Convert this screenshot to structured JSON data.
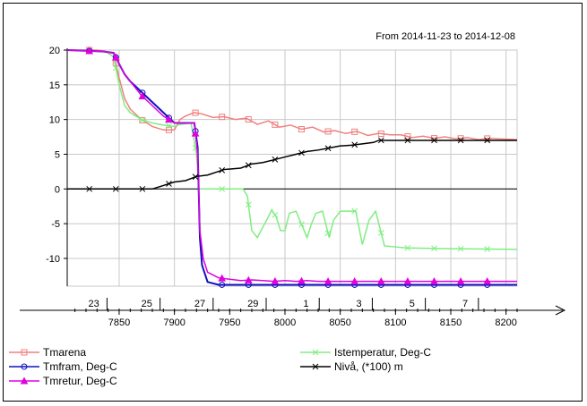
{
  "chart_data": {
    "type": "line",
    "annotation": "From 2014-11-23 to 2014-12-08",
    "x_ticks": [
      7850,
      7900,
      7950,
      8000,
      8050,
      8100,
      8150,
      8200
    ],
    "y_ticks": [
      20,
      15,
      10,
      5,
      0,
      -5,
      -10
    ],
    "date_ticks": [
      {
        "label": "23",
        "x": 7827
      },
      {
        "label": "25",
        "x": 7875
      },
      {
        "label": "27",
        "x": 7923
      },
      {
        "label": "29",
        "x": 7971
      },
      {
        "label": "1",
        "x": 8019
      },
      {
        "label": "3",
        "x": 8067
      },
      {
        "label": "5",
        "x": 8115
      },
      {
        "label": "7",
        "x": 8163
      }
    ],
    "xlim": [
      7803,
      8210
    ],
    "ylim": [
      -14,
      20
    ],
    "series": [
      {
        "name": "Tmarena",
        "color": "#f08080",
        "marker": "square",
        "x": [
          7803,
          7830,
          7838,
          7845,
          7850,
          7855,
          7860,
          7870,
          7880,
          7890,
          7900,
          7905,
          7910,
          7918,
          7925,
          7935,
          7945,
          7955,
          7965,
          7975,
          7985,
          7995,
          8005,
          8015,
          8025,
          8035,
          8045,
          8055,
          8065,
          8075,
          8085,
          8095,
          8105,
          8115,
          8125,
          8135,
          8145,
          8155,
          8165,
          8175,
          8185,
          8195,
          8210
        ],
        "y": [
          20,
          20,
          19.8,
          19.5,
          16,
          13,
          11.5,
          10,
          9,
          8.5,
          8.5,
          10,
          10.5,
          11,
          10.8,
          10.3,
          10.4,
          10,
          10.2,
          9.3,
          9.8,
          8.9,
          9.2,
          8.6,
          8.9,
          8.2,
          8.4,
          8,
          8.3,
          7.7,
          8,
          7.8,
          7.8,
          7.4,
          7.6,
          7.3,
          7.5,
          7.2,
          7.4,
          7.1,
          7.3,
          7.2,
          7.1
        ]
      },
      {
        "name": "Istemperatur, Deg-C",
        "color": "#80ee80",
        "marker": "x",
        "x": [
          7803,
          7838,
          7845,
          7850,
          7855,
          7860,
          7870,
          7880,
          7890,
          7900,
          7905,
          7915,
          7920,
          7922,
          7925,
          7928,
          7935,
          7950,
          7962,
          7966,
          7970,
          7975,
          7985,
          7988,
          7992,
          7996,
          8000,
          8004,
          8010,
          8020,
          8024,
          8028,
          8034,
          8040,
          8044,
          8050,
          8064,
          8070,
          8076,
          8082,
          8090,
          8110,
          8150,
          8210
        ],
        "y": [
          20,
          19.8,
          19,
          15,
          12,
          11,
          10,
          9.5,
          9.2,
          9,
          9.3,
          9.5,
          5,
          0,
          0,
          0,
          0,
          0,
          0,
          -1,
          -6,
          -7,
          -4,
          -3,
          -4,
          -6,
          -6,
          -3.5,
          -3.2,
          -7,
          -5,
          -3.5,
          -3.2,
          -7,
          -4.5,
          -3.2,
          -3.2,
          -8,
          -4.5,
          -3.2,
          -8.2,
          -8.5,
          -8.6,
          -8.7
        ]
      },
      {
        "name": "Tmfram, Deg-C",
        "color": "#1010c0",
        "marker": "circle",
        "x": [
          7803,
          7835,
          7845,
          7850,
          7855,
          7860,
          7870,
          7880,
          7890,
          7900,
          7910,
          7918,
          7921,
          7923,
          7925,
          7930,
          7940,
          7950,
          7980,
          8020,
          8060,
          8100,
          8140,
          8180,
          8210
        ],
        "y": [
          20,
          19.8,
          19.6,
          18,
          16.5,
          15.5,
          14,
          12.5,
          11,
          9.5,
          9.5,
          9.5,
          6,
          -7,
          -11,
          -13.4,
          -13.8,
          -13.8,
          -13.8,
          -13.8,
          -13.8,
          -13.8,
          -13.8,
          -13.8,
          -13.8
        ]
      },
      {
        "name": "Tmretur, Deg-C",
        "color": "#e000e0",
        "marker": "triangle",
        "x": [
          7803,
          7835,
          7845,
          7850,
          7855,
          7860,
          7870,
          7880,
          7890,
          7900,
          7910,
          7918,
          7921,
          7923,
          7926,
          7930,
          7940,
          7950,
          7960,
          7970,
          7980,
          7990,
          8000,
          8010,
          8020,
          8030,
          8040,
          8060,
          8080,
          8100,
          8140,
          8180,
          8210
        ],
        "y": [
          20,
          19.8,
          19.6,
          18,
          16.5,
          15.5,
          13.5,
          12,
          10.5,
          9.5,
          9.5,
          9.5,
          5,
          -6,
          -10,
          -12,
          -12.8,
          -13,
          -13.2,
          -13.1,
          -13.2,
          -13.3,
          -13.2,
          -13.3,
          -13.2,
          -13.3,
          -13.3,
          -13.3,
          -13.3,
          -13.3,
          -13.3,
          -13.3,
          -13.3
        ]
      },
      {
        "name": "Nivå, (*100) m",
        "color": "#000000",
        "marker": "x",
        "x": [
          7803,
          7840,
          7858,
          7865,
          7880,
          7890,
          7900,
          7910,
          7920,
          7930,
          7945,
          7960,
          7970,
          7980,
          7990,
          8000,
          8010,
          8020,
          8030,
          8040,
          8050,
          8060,
          8070,
          8080,
          8085,
          8100,
          8130,
          8160,
          8190,
          8210
        ],
        "y": [
          0,
          0,
          0,
          0,
          0,
          0.5,
          1,
          1.2,
          1.8,
          2,
          2.8,
          3,
          3.6,
          3.8,
          4.2,
          4.6,
          5,
          5.4,
          5.6,
          5.9,
          6.2,
          6.3,
          6.5,
          6.7,
          7,
          7,
          7,
          7,
          7,
          7
        ]
      }
    ]
  },
  "legend": {
    "items": [
      {
        "label": "Tmarena"
      },
      {
        "label": "Tmfram, Deg-C"
      },
      {
        "label": "Tmretur, Deg-C"
      },
      {
        "label": "Istemperatur, Deg-C"
      },
      {
        "label": "Nivå, (*100) m"
      }
    ]
  }
}
